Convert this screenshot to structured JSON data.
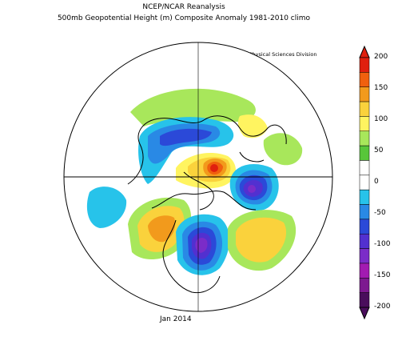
{
  "title": {
    "line1": "NCEP/NCAR Reanalysis",
    "line2": "500mb Geopotential Height (m) Composite Anomaly 1981-2010 climo"
  },
  "credit": "NOAA/ESRL Physical Sciences Division",
  "footer": "Jan 2014",
  "colorbar": {
    "labels": [
      "200",
      "150",
      "100",
      "50",
      "0",
      "-50",
      "-100",
      "-150",
      "-200"
    ],
    "colors": [
      "#e0200e",
      "#f0600e",
      "#f29a1c",
      "#fad23c",
      "#fff460",
      "#a8e75b",
      "#58c63a",
      "#ffffff",
      "#ffffff",
      "#27c3ea",
      "#2989e5",
      "#2b49d8",
      "#5230d0",
      "#7b2cc8",
      "#a21bb1",
      "#7d1990",
      "#4a0e5c"
    ]
  },
  "anomalies": [
    {
      "label": "positive-north-pacific-west",
      "level": 50
    },
    {
      "label": "negative-siberia",
      "level": -100
    },
    {
      "label": "positive-arctic-center",
      "level": 200
    },
    {
      "label": "negative-scandinavia",
      "level": -150
    },
    {
      "label": "positive-alaska",
      "level": 100
    },
    {
      "label": "negative-pacific-southwest",
      "level": -50
    },
    {
      "label": "negative-eastern-north-america",
      "level": -150
    },
    {
      "label": "positive-north-atlantic",
      "level": 100
    },
    {
      "label": "positive-western-pacific",
      "level": 50
    }
  ]
}
